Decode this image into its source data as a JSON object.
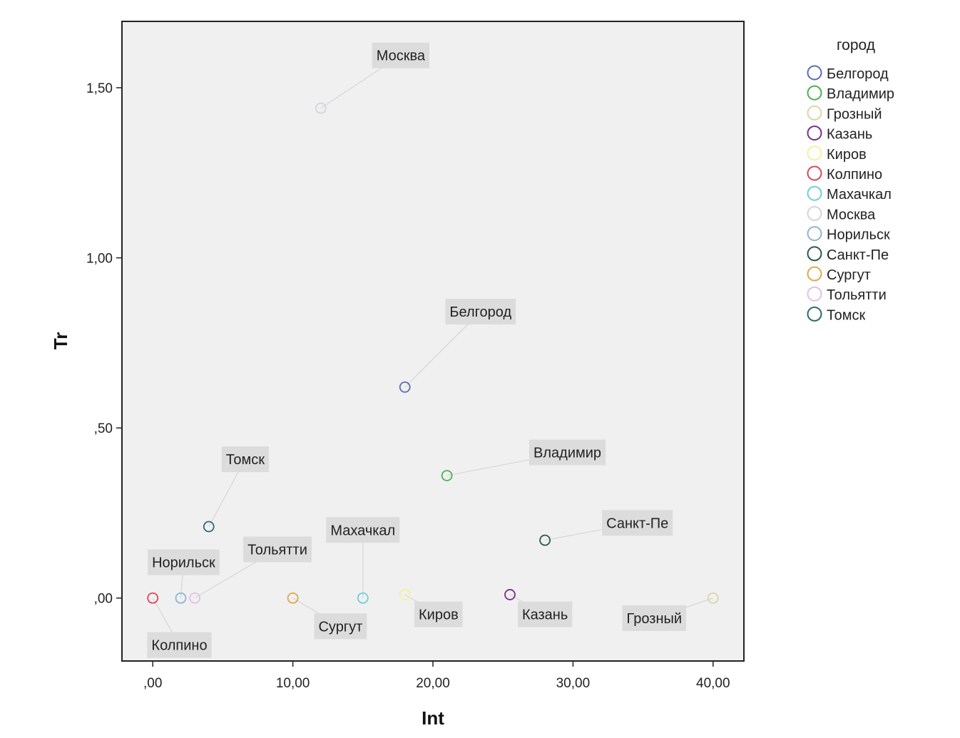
{
  "chart_data": {
    "type": "scatter",
    "title": "",
    "xlabel": "Int",
    "ylabel": "Tr",
    "xlim": [
      -2.2,
      42.2
    ],
    "ylim": [
      -0.185,
      1.695
    ],
    "grid": false,
    "legend_position": "right",
    "legend_title": "город",
    "x_ticks": [
      {
        "value": 0,
        "label": ",00"
      },
      {
        "value": 10,
        "label": "10,00"
      },
      {
        "value": 20,
        "label": "20,00"
      },
      {
        "value": 30,
        "label": "30,00"
      },
      {
        "value": 40,
        "label": "40,00"
      }
    ],
    "y_ticks": [
      {
        "value": 0,
        "label": ",00"
      },
      {
        "value": 0.5,
        "label": ",50"
      },
      {
        "value": 1.0,
        "label": "1,00"
      },
      {
        "value": 1.5,
        "label": "1,50"
      }
    ],
    "series": [
      {
        "name": "Белгород",
        "color": "#5B6DB3",
        "points": [
          {
            "x": 18,
            "y": 0.62
          }
        ]
      },
      {
        "name": "Владимир",
        "color": "#4CB050",
        "points": [
          {
            "x": 21,
            "y": 0.36
          }
        ]
      },
      {
        "name": "Грозный",
        "color": "#D9D6A8",
        "points": [
          {
            "x": 40,
            "y": 0.0
          }
        ]
      },
      {
        "name": "Казань",
        "color": "#7B2D8E",
        "points": [
          {
            "x": 25.5,
            "y": 0.01
          }
        ]
      },
      {
        "name": "Киров",
        "color": "#F4F0A0",
        "points": [
          {
            "x": 18,
            "y": 0.01
          }
        ]
      },
      {
        "name": "Колпино",
        "color": "#D9485A",
        "points": [
          {
            "x": 0,
            "y": 0.0
          }
        ]
      },
      {
        "name": "Махачкал",
        "color": "#6FCFD6",
        "points": [
          {
            "x": 15,
            "y": 0.0
          }
        ]
      },
      {
        "name": "Москва",
        "color": "#D5D2DF",
        "points": [
          {
            "x": 12,
            "y": 1.44
          }
        ]
      },
      {
        "name": "Норильск",
        "color": "#8FB4D2",
        "points": [
          {
            "x": 2,
            "y": 0.0
          }
        ]
      },
      {
        "name": "Санкт-Пе",
        "color": "#2A5A48",
        "points": [
          {
            "x": 28,
            "y": 0.17
          }
        ]
      },
      {
        "name": "Сургут",
        "color": "#E0A84E",
        "points": [
          {
            "x": 10,
            "y": 0.0
          }
        ]
      },
      {
        "name": "Тольятти",
        "color": "#E4BEE8",
        "points": [
          {
            "x": 3,
            "y": 0.0
          }
        ]
      },
      {
        "name": "Томск",
        "color": "#2E6A70",
        "points": [
          {
            "x": 4,
            "y": 0.21
          }
        ]
      }
    ],
    "annotations": [
      {
        "series": "Москва",
        "text": "Москва",
        "tx": 17.7,
        "ty": 1.595
      },
      {
        "series": "Белгород",
        "text": "Белгород",
        "tx": 23.4,
        "ty": 0.842
      },
      {
        "series": "Владимир",
        "text": "Владимир",
        "tx": 29.6,
        "ty": 0.428
      },
      {
        "series": "Томск",
        "text": "Томск",
        "tx": 6.6,
        "ty": 0.408
      },
      {
        "series": "Санкт-Пе",
        "text": "Санкт-Пе",
        "tx": 34.6,
        "ty": 0.221
      },
      {
        "series": "Махачкал",
        "text": "Махачкал",
        "tx": 15.0,
        "ty": 0.2
      },
      {
        "series": "Тольятти",
        "text": "Тольятти",
        "tx": 8.9,
        "ty": 0.143
      },
      {
        "series": "Норильск",
        "text": "Норильск",
        "tx": 2.2,
        "ty": 0.105
      },
      {
        "series": "Сургут",
        "text": "Сургут",
        "tx": 13.4,
        "ty": -0.083
      },
      {
        "series": "Киров",
        "text": "Киров",
        "tx": 20.4,
        "ty": -0.048
      },
      {
        "series": "Казань",
        "text": "Казань",
        "tx": 28.0,
        "ty": -0.048
      },
      {
        "series": "Грозный",
        "text": "Грозный",
        "tx": 35.8,
        "ty": -0.059
      },
      {
        "series": "Колпино",
        "text": "Колпино",
        "tx": 1.9,
        "ty": -0.138
      }
    ]
  }
}
